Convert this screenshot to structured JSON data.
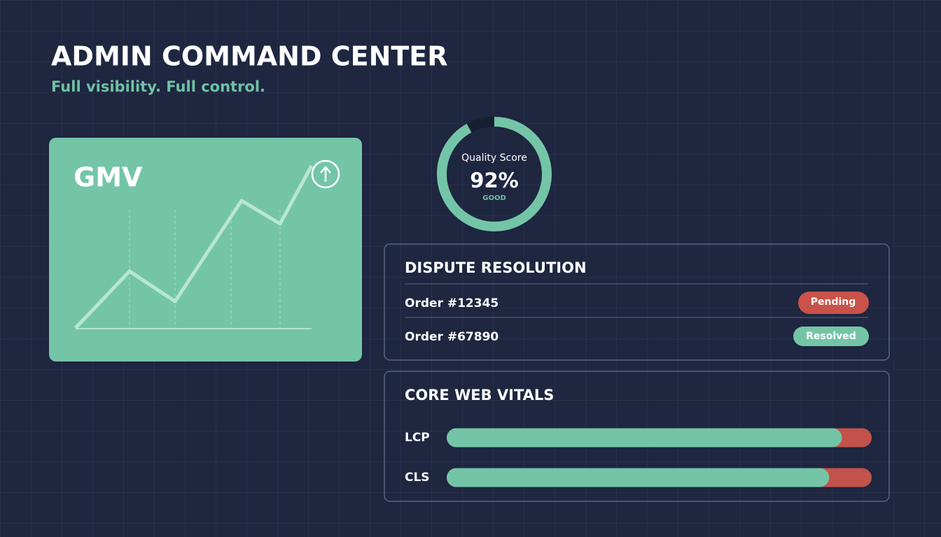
{
  "header": {
    "title": "ADMIN COMMAND CENTER",
    "subtitle": "Full visibility. Full control."
  },
  "gmv": {
    "label": "GMV"
  },
  "quality": {
    "label": "Quality Score",
    "value": 92,
    "value_label": "92%",
    "status": "GOOD"
  },
  "disputes": {
    "title": "DISPUTE RESOLUTION",
    "rows": [
      {
        "order": "Order #12345",
        "status": "Pending"
      },
      {
        "order": "Order #67890",
        "status": "Resolved"
      }
    ]
  },
  "vitals": {
    "title": "CORE WEB VITALS",
    "items": [
      {
        "name": "LCP",
        "value": 93
      },
      {
        "name": "CLS",
        "value": 90
      }
    ]
  }
}
